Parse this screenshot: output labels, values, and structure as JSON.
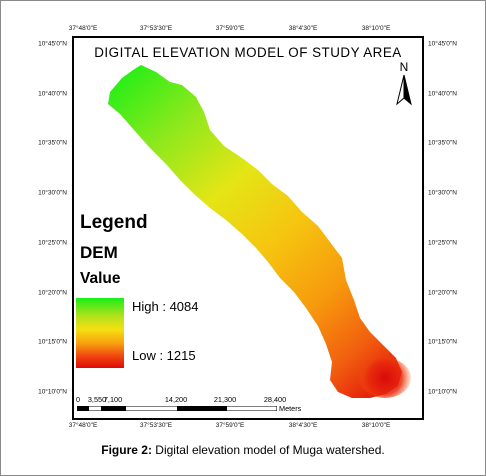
{
  "map": {
    "title": "DIGITAL ELEVATION MODEL OF STUDY AREA",
    "north_label": "N",
    "longitude_ticks_top": [
      "37°48'0\"E",
      "37°53'30\"E",
      "37°59'0\"E",
      "38°4'30\"E",
      "38°10'0\"E"
    ],
    "longitude_ticks_bottom": [
      "37°48'0\"E",
      "37°53'30\"E",
      "37°59'0\"E",
      "38°4'30\"E",
      "38°10'0\"E"
    ],
    "latitude_ticks_left": [
      "10°45'0\"N",
      "10°40'0\"N",
      "10°35'0\"N",
      "10°30'0\"N",
      "10°25'0\"N",
      "10°20'0\"N",
      "10°15'0\"N",
      "10°10'0\"N"
    ],
    "latitude_ticks_right": [
      "10°45'0\"N",
      "10°40'0\"N",
      "10°35'0\"N",
      "10°30'0\"N",
      "10°25'0\"N",
      "10°20'0\"N",
      "10°15'0\"N",
      "10°10'0\"N"
    ]
  },
  "legend": {
    "title": "Legend",
    "layer": "DEM",
    "field": "Value",
    "high_label": "High : 4084",
    "low_label": "Low : 1215",
    "colors": {
      "high": "#18ef16",
      "mid": "#f5e012",
      "low": "#e00a0a"
    }
  },
  "scale_bar": {
    "labels": [
      "0",
      "3,550",
      "7,100",
      "14,200",
      "21,300",
      "28,400"
    ],
    "unit": "Meters"
  },
  "caption": {
    "label": "Figure 2:",
    "text": " Digital elevation model of Muga watershed."
  }
}
